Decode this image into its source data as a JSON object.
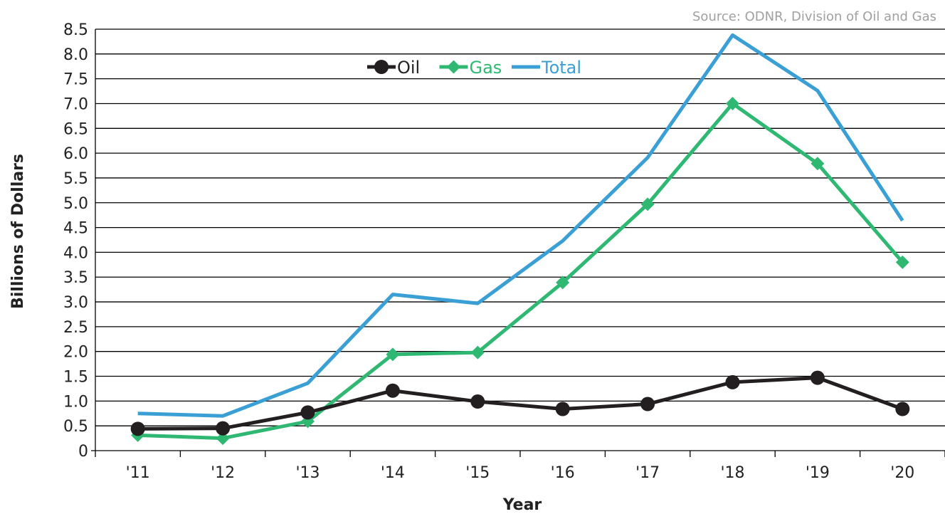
{
  "chart_data": {
    "type": "line",
    "source": "Source: ODNR, Division of Oil and Gas",
    "xlabel": "Year",
    "ylabel": "Billions of Dollars",
    "categories": [
      "'11",
      "'12",
      "'13",
      "'14",
      "'15",
      "'16",
      "'17",
      "'18",
      "'19",
      "'20"
    ],
    "ylim": [
      0,
      8.5
    ],
    "yticks": [
      "0",
      "0.5",
      "1.0",
      "1.5",
      "2.0",
      "2.5",
      "3.0",
      "3.5",
      "4.0",
      "4.5",
      "5.0",
      "5.5",
      "6.0",
      "6.5",
      "7.0",
      "7.5",
      "8.0",
      "8.5"
    ],
    "grid": true,
    "legend_position": "top-center",
    "series": [
      {
        "name": "Oil",
        "color": "#231f20",
        "marker": "circle",
        "values": [
          0.44,
          0.45,
          0.77,
          1.21,
          0.99,
          0.84,
          0.94,
          1.38,
          1.47,
          0.84
        ]
      },
      {
        "name": "Gas",
        "color": "#2eb872",
        "marker": "diamond",
        "values": [
          0.31,
          0.25,
          0.59,
          1.94,
          1.98,
          3.39,
          4.97,
          7.0,
          5.79,
          3.8
        ]
      },
      {
        "name": "Total",
        "color": "#3a9fd5",
        "marker": "none",
        "values": [
          0.75,
          0.7,
          1.36,
          3.15,
          2.97,
          4.23,
          5.91,
          8.38,
          7.26,
          4.64
        ]
      }
    ]
  }
}
